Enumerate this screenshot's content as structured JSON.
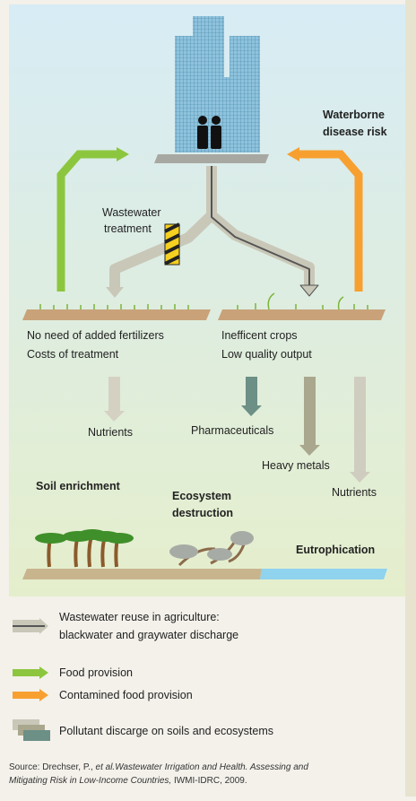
{
  "diagram": {
    "waterborne_risk": [
      "Waterborne",
      "disease risk"
    ],
    "treatment": [
      "Wastewater",
      "treatment"
    ],
    "left_field": [
      "No need of added fertilizers",
      "Costs of treatment"
    ],
    "right_field": [
      "Inefficent crops",
      "Low quality output"
    ],
    "flows": [
      "Nutrients",
      "Pharmaceuticals",
      "Heavy metals",
      "Nutrients"
    ],
    "outcomes": {
      "soil": "Soil enrichment",
      "ecosystem": [
        "Ecosystem",
        "destruction"
      ],
      "eutrophication": "Eutrophication"
    }
  },
  "legend": [
    [
      "Wastewater reuse in agriculture:",
      "blackwater and graywater discharge"
    ],
    [
      "Food provision"
    ],
    [
      "Contamined food provision"
    ],
    [
      "Pollutant discarge on soils and ecosystems"
    ]
  ],
  "source": {
    "prefix": "Source: Drechser, P., ",
    "italic_1": "et al.Wastewater Irrigation and Health. Assessing and",
    "italic_2": "Mitigating Risk in Low-Income Countries,",
    "suffix": " IWMI-IDRC, 2009."
  }
}
